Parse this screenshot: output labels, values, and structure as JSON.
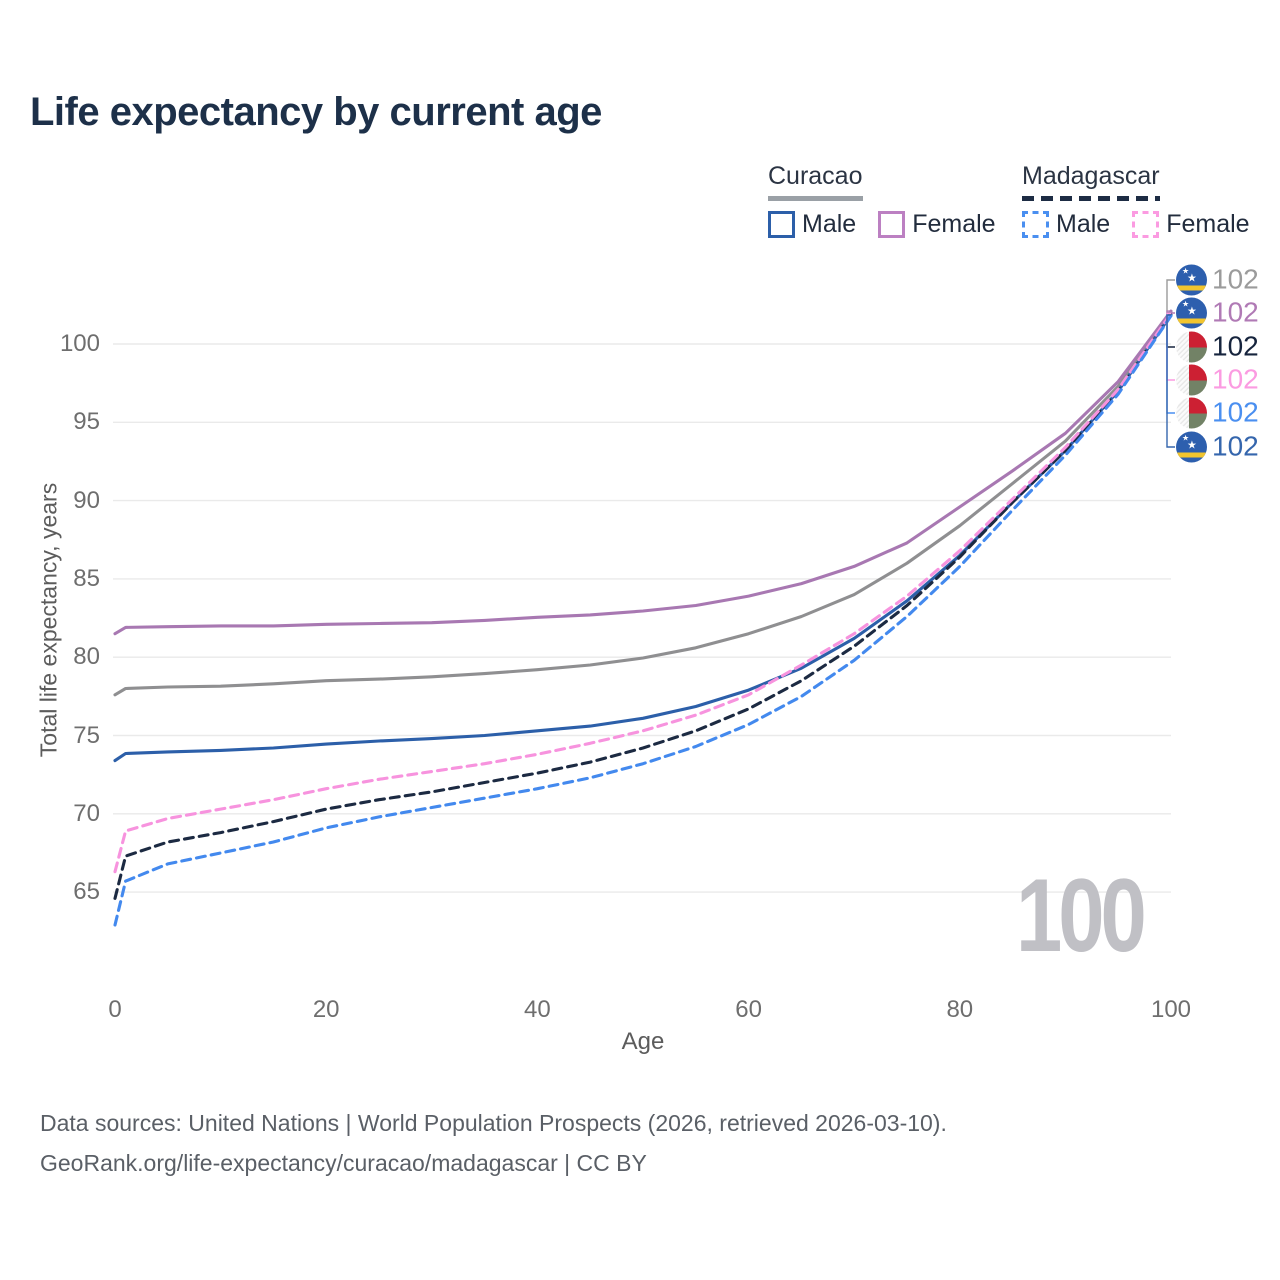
{
  "title": "Life expectancy by current age",
  "watermark": "100",
  "legend": {
    "groups": [
      {
        "name": "Curacao",
        "line_style": "solid",
        "underline_color": "#9aa0a6",
        "items": [
          {
            "label": "Male",
            "color": "#2c5fa9",
            "dashed": false
          },
          {
            "label": "Female",
            "color": "#bc80c2",
            "dashed": false
          }
        ]
      },
      {
        "name": "Madagascar",
        "line_style": "dashed",
        "underline_color": "#1d2c44",
        "items": [
          {
            "label": "Male",
            "color": "#4a8ff0",
            "dashed": true
          },
          {
            "label": "Female",
            "color": "#fb9be1",
            "dashed": true
          }
        ]
      }
    ]
  },
  "chart_data": {
    "type": "line",
    "title": "Life expectancy by current age",
    "xlabel": "Age",
    "ylabel": "Total life expectancy, years",
    "xlim": [
      0,
      100
    ],
    "ylim": [
      62,
      103
    ],
    "xticks": [
      0,
      20,
      40,
      60,
      80,
      100
    ],
    "yticks": [
      65,
      70,
      75,
      80,
      85,
      90,
      95,
      100
    ],
    "grid": "horizontal",
    "legend_position": "top-right",
    "x": [
      0,
      1,
      5,
      10,
      15,
      20,
      25,
      30,
      35,
      40,
      45,
      50,
      55,
      60,
      65,
      70,
      75,
      80,
      85,
      90,
      95,
      100
    ],
    "series": [
      {
        "id": "curacao_both",
        "name": "Curacao — Both sexes",
        "color": "#8f8f91",
        "dashed": false,
        "values": [
          77.6,
          78.0,
          78.1,
          78.15,
          78.3,
          78.5,
          78.6,
          78.75,
          78.95,
          79.2,
          79.5,
          79.95,
          80.6,
          81.5,
          82.6,
          84.0,
          86.0,
          88.4,
          91.1,
          93.8,
          97.3,
          102.0
        ]
      },
      {
        "id": "curacao_female",
        "name": "Curacao — Female",
        "color": "#a878b2",
        "dashed": false,
        "values": [
          81.5,
          81.9,
          81.95,
          82.0,
          82.0,
          82.1,
          82.15,
          82.2,
          82.35,
          82.55,
          82.7,
          82.95,
          83.3,
          83.9,
          84.7,
          85.8,
          87.3,
          89.6,
          91.9,
          94.3,
          97.6,
          102.1
        ]
      },
      {
        "id": "curacao_male",
        "name": "Curacao — Male",
        "color": "#2c5fa9",
        "dashed": false,
        "values": [
          73.4,
          73.85,
          73.95,
          74.05,
          74.2,
          74.45,
          74.65,
          74.8,
          75.0,
          75.3,
          75.6,
          76.1,
          76.85,
          77.9,
          79.3,
          81.2,
          83.6,
          86.5,
          89.9,
          93.2,
          97.0,
          101.85
        ]
      },
      {
        "id": "madagascar_both",
        "name": "Madagascar — Both sexes",
        "color": "#1c2a42",
        "dashed": true,
        "values": [
          64.6,
          67.3,
          68.2,
          68.8,
          69.5,
          70.3,
          70.9,
          71.4,
          72.0,
          72.6,
          73.3,
          74.2,
          75.3,
          76.7,
          78.5,
          80.7,
          83.3,
          86.4,
          89.9,
          93.2,
          97.0,
          101.9
        ]
      },
      {
        "id": "madagascar_female",
        "name": "Madagascar — Female",
        "color": "#f793de",
        "dashed": true,
        "values": [
          66.3,
          68.9,
          69.7,
          70.3,
          70.9,
          71.6,
          72.2,
          72.7,
          73.2,
          73.8,
          74.5,
          75.3,
          76.3,
          77.6,
          79.5,
          81.5,
          83.9,
          86.8,
          90.1,
          93.4,
          97.1,
          101.95
        ]
      },
      {
        "id": "madagascar_male",
        "name": "Madagascar — Male",
        "color": "#4389ee",
        "dashed": true,
        "values": [
          62.9,
          65.7,
          66.8,
          67.5,
          68.2,
          69.1,
          69.8,
          70.4,
          71.0,
          71.6,
          72.3,
          73.2,
          74.3,
          75.7,
          77.5,
          79.8,
          82.6,
          85.8,
          89.4,
          92.9,
          96.8,
          101.8
        ]
      }
    ],
    "endpoint_labels": [
      {
        "series": "curacao_both",
        "flag": "curacao",
        "value": "102",
        "color": "#9b9b9b"
      },
      {
        "series": "curacao_female",
        "flag": "curacao",
        "value": "102",
        "color": "#b07ab5"
      },
      {
        "series": "madagascar_both",
        "flag": "madagascar",
        "value": "102",
        "color": "#16243d"
      },
      {
        "series": "madagascar_female",
        "flag": "madagascar",
        "value": "102",
        "color": "#fb9be1"
      },
      {
        "series": "madagascar_male",
        "flag": "madagascar",
        "value": "102",
        "color": "#4a8ff0"
      },
      {
        "series": "curacao_male",
        "flag": "curacao",
        "value": "102",
        "color": "#3566ad"
      }
    ]
  },
  "footer": {
    "line1": "Data sources: United Nations | World Population Prospects (2026, retrieved 2026-03-10).",
    "line2": "GeoRank.org/life-expectancy/curacao/madagascar | CC BY"
  }
}
